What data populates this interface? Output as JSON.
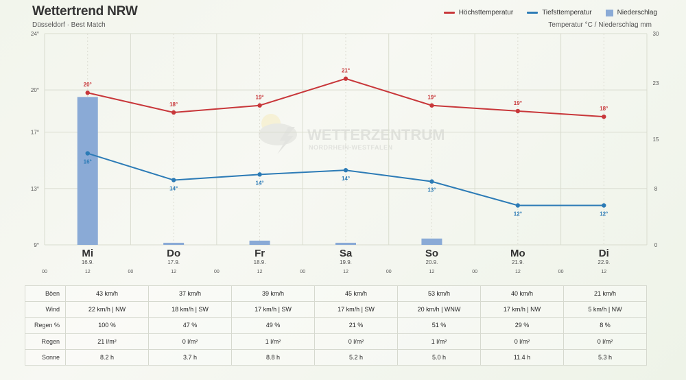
{
  "header": {
    "title": "Wettertrend NRW",
    "subtitle": "Düsseldorf · Best Match",
    "units": "Temperatur °C / Niederschlag mm"
  },
  "legend": {
    "max_label": "Höchsttemperatur",
    "min_label": "Tiefsttemperatur",
    "rain_label": "Niederschlag"
  },
  "watermark": {
    "title": "WETTERZENTRUM",
    "subtitle": "NORDRHEIN-WESTFALEN"
  },
  "colors": {
    "max": "#c8373a",
    "min": "#2c7bb6",
    "rain": "#8aaad6",
    "grid": "#d9dccf"
  },
  "chart_data": {
    "type": "line",
    "categories": [
      "Mi",
      "Do",
      "Fr",
      "Sa",
      "So",
      "Mo",
      "Di"
    ],
    "dates": [
      "16.9.",
      "17.9.",
      "18.9.",
      "19.9.",
      "20.9.",
      "21.9.",
      "22.9."
    ],
    "hour_labels": [
      "00",
      "12"
    ],
    "series": [
      {
        "name": "Höchsttemperatur",
        "unit": "°C",
        "values": [
          20,
          18,
          19,
          21,
          19,
          19,
          18
        ],
        "plot_values": [
          19.8,
          18.4,
          18.9,
          20.8,
          18.9,
          18.5,
          18.1
        ],
        "labels": [
          "20°",
          "18°",
          "19°",
          "21°",
          "19°",
          "19°",
          "18°"
        ]
      },
      {
        "name": "Tiefsttemperatur",
        "unit": "°C",
        "values": [
          16,
          14,
          14,
          14,
          13,
          12,
          12
        ],
        "plot_values": [
          15.5,
          13.6,
          14.0,
          14.3,
          13.5,
          11.8,
          11.8
        ],
        "labels": [
          "16°",
          "14°",
          "14°",
          "14°",
          "13°",
          "12°",
          "12°"
        ]
      },
      {
        "name": "Niederschlag",
        "unit": "mm",
        "type": "bar",
        "values": [
          21,
          0.3,
          0.6,
          0.3,
          0.9,
          0,
          0
        ]
      }
    ],
    "y_left": {
      "min": 9,
      "max": 24,
      "ticks": [
        9,
        13,
        17,
        20,
        24
      ],
      "tick_labels": [
        "9°",
        "13°",
        "17°",
        "20°",
        "24°"
      ]
    },
    "y_right": {
      "min": 0,
      "max": 30,
      "ticks": [
        0,
        8,
        15,
        23,
        30
      ],
      "tick_labels": [
        "0",
        "8",
        "15",
        "23",
        "30"
      ]
    }
  },
  "table": {
    "rows": [
      {
        "label": "Böen",
        "values": [
          "43 km/h",
          "37 km/h",
          "39 km/h",
          "45 km/h",
          "53 km/h",
          "40 km/h",
          "21 km/h"
        ]
      },
      {
        "label": "Wind",
        "values": [
          "22 km/h | NW",
          "18 km/h | SW",
          "17 km/h | SW",
          "17 km/h | SW",
          "20 km/h | WNW",
          "17 km/h | NW",
          "5 km/h | NW"
        ]
      },
      {
        "label": "Regen %",
        "values": [
          "100 %",
          "47 %",
          "49 %",
          "21 %",
          "51 %",
          "29 %",
          "8 %"
        ]
      },
      {
        "label": "Regen",
        "values": [
          "21 l/m²",
          "0 l/m²",
          "1 l/m²",
          "0 l/m²",
          "1 l/m²",
          "0 l/m²",
          "0 l/m²"
        ]
      },
      {
        "label": "Sonne",
        "values": [
          "8.2 h",
          "3.7 h",
          "8.8 h",
          "5.2 h",
          "5.0 h",
          "11.4 h",
          "5.3 h"
        ]
      }
    ]
  }
}
